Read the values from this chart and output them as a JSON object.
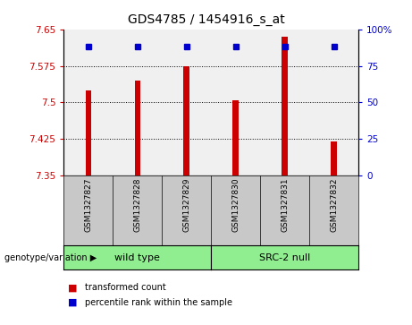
{
  "title": "GDS4785 / 1454916_s_at",
  "samples": [
    "GSM1327827",
    "GSM1327828",
    "GSM1327829",
    "GSM1327830",
    "GSM1327831",
    "GSM1327832"
  ],
  "transformed_counts": [
    7.525,
    7.545,
    7.575,
    7.505,
    7.635,
    7.42
  ],
  "percentile_rank_values": [
    88,
    88,
    88,
    88,
    88,
    88
  ],
  "y_min": 7.35,
  "y_max": 7.65,
  "y_ticks": [
    7.35,
    7.425,
    7.5,
    7.575,
    7.65
  ],
  "y_tick_labels": [
    "7.35",
    "7.425",
    "7.5",
    "7.575",
    "7.65"
  ],
  "right_y_ticks": [
    0,
    25,
    50,
    75,
    100
  ],
  "right_y_tick_labels": [
    "0",
    "25",
    "50",
    "75",
    "100%"
  ],
  "bar_color": "#cc0000",
  "dot_color": "#0000cc",
  "bar_width": 0.12,
  "left_tick_color": "#cc0000",
  "right_tick_color": "#0000cc",
  "plot_bg_color": "#f0f0f0",
  "sample_box_color": "#c8c8c8",
  "group_box_color": "#90EE90",
  "legend_red_label": "transformed count",
  "legend_blue_label": "percentile rank within the sample",
  "genotype_label": "genotype/variation",
  "wt_label": "wild type",
  "src_label": "SRC-2 null",
  "grid_lines": [
    7.425,
    7.5,
    7.575
  ]
}
